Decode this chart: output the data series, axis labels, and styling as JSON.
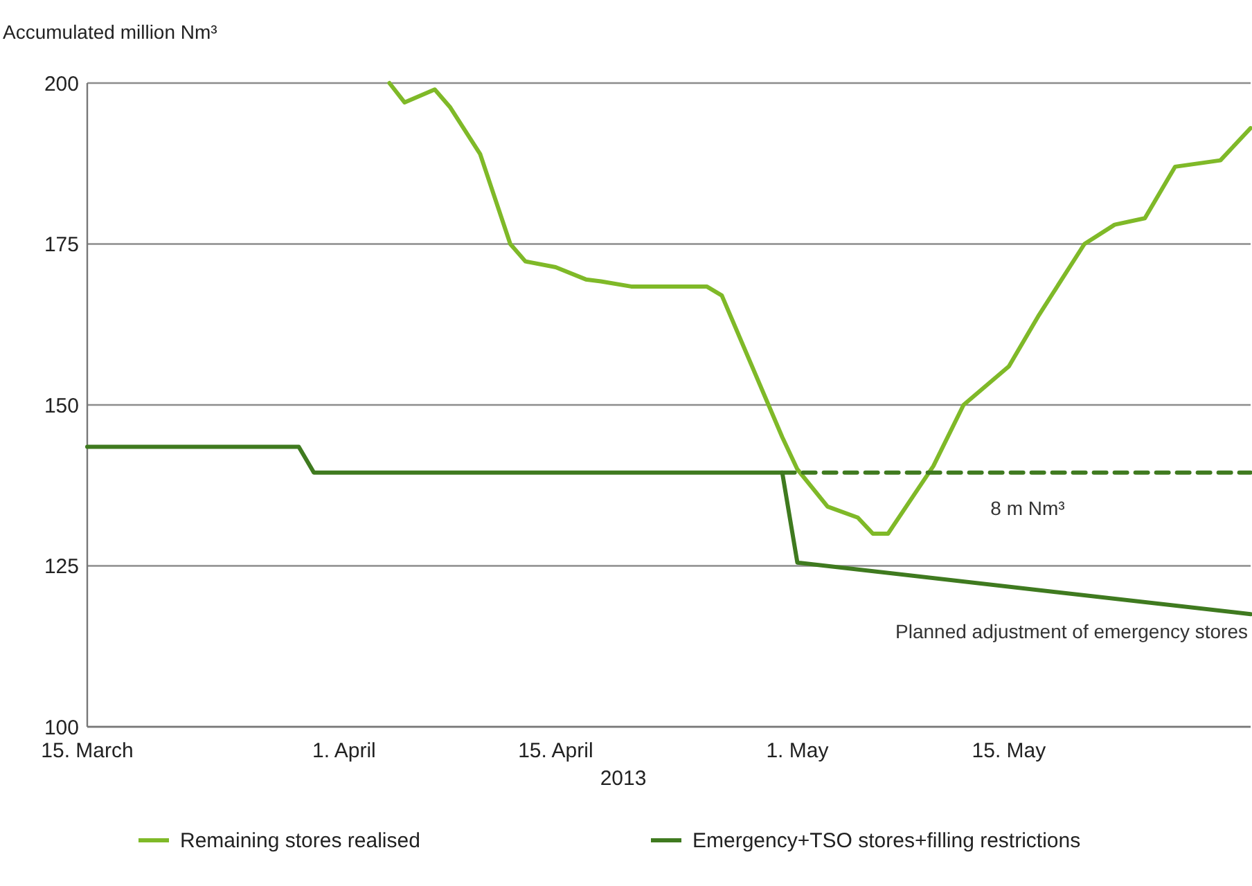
{
  "chart_data": {
    "type": "line",
    "ylabel": "Accumulated million Nm³",
    "xlabel": "2013",
    "xlim": [
      "2013-03-15",
      "2013-05-31"
    ],
    "xticks": [
      {
        "value": "2013-03-15",
        "label": "15. March"
      },
      {
        "value": "2013-04-01",
        "label": "1. April"
      },
      {
        "value": "2013-04-15",
        "label": "15. April"
      },
      {
        "value": "2013-05-01",
        "label": "1. May"
      },
      {
        "value": "2013-05-15",
        "label": "15. May"
      }
    ],
    "ylim": [
      100,
      200
    ],
    "yticks": [
      100,
      125,
      150,
      175,
      200
    ],
    "grid": "y",
    "legend": "bottom",
    "series": [
      {
        "name": "Remaining stores realised",
        "color": "#7fb928",
        "x": [
          "2013-04-04",
          "2013-04-05",
          "2013-04-07",
          "2013-04-08",
          "2013-04-10",
          "2013-04-12",
          "2013-04-13",
          "2013-04-15",
          "2013-04-17",
          "2013-04-18",
          "2013-04-20",
          "2013-04-25",
          "2013-04-26",
          "2013-04-30",
          "2013-05-01",
          "2013-05-03",
          "2013-05-05",
          "2013-05-06",
          "2013-05-07",
          "2013-05-09",
          "2013-05-10",
          "2013-05-12",
          "2013-05-15",
          "2013-05-17",
          "2013-05-20",
          "2013-05-22",
          "2013-05-24",
          "2013-05-26",
          "2013-05-29",
          "2013-05-31"
        ],
        "values": [
          200,
          197,
          199,
          196.3,
          189,
          175,
          172.3,
          171.4,
          169.5,
          169.2,
          168.4,
          168.4,
          167,
          145,
          140,
          134.2,
          132.5,
          130,
          130,
          137,
          140.5,
          150,
          156,
          164,
          175,
          178,
          179,
          187,
          188,
          193
        ]
      },
      {
        "name": "Emergency+TSO stores+filling restrictions",
        "color": "#3f7a1f",
        "x": [
          "2013-03-15",
          "2013-03-29",
          "2013-03-30",
          "2013-04-30",
          "2013-05-01",
          "2013-05-31"
        ],
        "values": [
          143.5,
          143.5,
          139.5,
          139.5,
          125.5,
          117.5
        ]
      },
      {
        "color": "#3f7a1f",
        "line_style": "dashed",
        "x": [
          "2013-04-30",
          "2013-05-31"
        ],
        "values": [
          139.5,
          139.5
        ]
      }
    ],
    "annotations": [
      "8 m Nm³",
      "Planned adjustment of emergency stores"
    ]
  }
}
